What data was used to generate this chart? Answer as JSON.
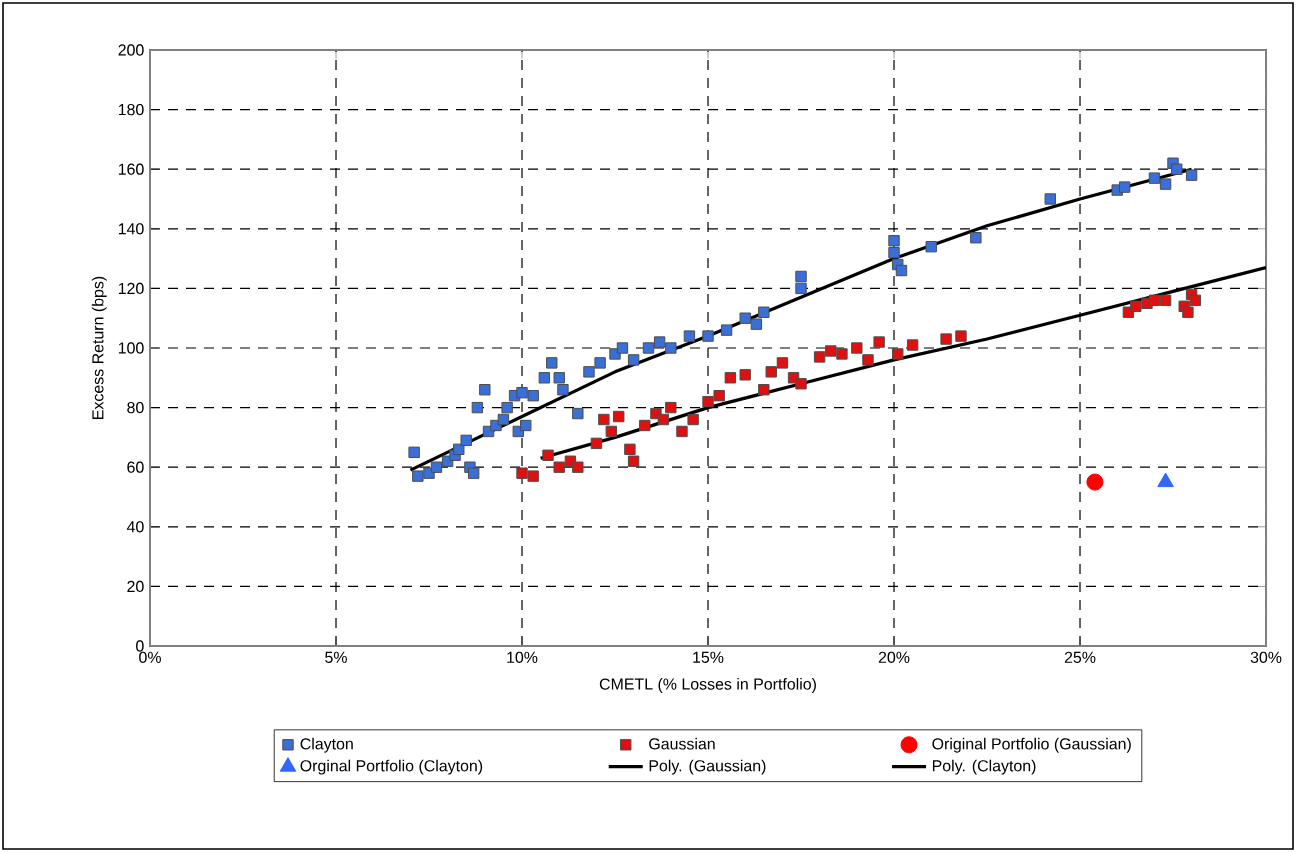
{
  "chart_data": {
    "type": "scatter",
    "xlabel": "CMETL (% Losses in Portfolio)",
    "ylabel": "Excess Return (bps)",
    "xlim": [
      0,
      30
    ],
    "ylim": [
      0,
      200
    ],
    "xticks": [
      {
        "value": 0,
        "label": "0%"
      },
      {
        "value": 5,
        "label": "5%"
      },
      {
        "value": 10,
        "label": "10%"
      },
      {
        "value": 15,
        "label": "15%"
      },
      {
        "value": 20,
        "label": "20%"
      },
      {
        "value": 25,
        "label": "25%"
      },
      {
        "value": 30,
        "label": "30%"
      }
    ],
    "yticks": [
      0,
      20,
      40,
      60,
      80,
      100,
      120,
      140,
      160,
      180,
      200
    ],
    "grid": true,
    "legend": "bottom",
    "series": [
      {
        "name": "Clayton",
        "marker": "square",
        "color": "#3a6fd8",
        "x": [
          7.1,
          7.2,
          7.5,
          7.7,
          8.0,
          8.2,
          8.3,
          8.5,
          8.6,
          8.7,
          8.8,
          9.0,
          9.1,
          9.3,
          9.5,
          9.6,
          9.8,
          9.9,
          10.0,
          10.1,
          10.3,
          10.6,
          10.8,
          11.0,
          11.1,
          11.5,
          11.8,
          12.1,
          12.5,
          12.7,
          13.0,
          13.4,
          13.7,
          14.0,
          14.5,
          15.0,
          15.5,
          16.0,
          16.3,
          16.5,
          17.5,
          17.5,
          20.0,
          20.0,
          20.1,
          20.2,
          21.0,
          22.2,
          24.2,
          26.0,
          26.2,
          27.0,
          27.3,
          27.5,
          27.6,
          28.0
        ],
        "values": [
          65,
          57,
          58,
          60,
          62,
          64,
          66,
          69,
          60,
          58,
          80,
          86,
          72,
          74,
          76,
          80,
          84,
          72,
          85,
          74,
          84,
          90,
          95,
          90,
          86,
          78,
          92,
          95,
          98,
          100,
          96,
          100,
          102,
          100,
          104,
          104,
          106,
          110,
          108,
          112,
          120,
          124,
          136,
          132,
          128,
          126,
          134,
          137,
          150,
          153,
          154,
          157,
          155,
          162,
          160,
          158
        ]
      },
      {
        "name": "Gaussian",
        "marker": "square",
        "color": "#e01010",
        "x": [
          10.0,
          10.3,
          10.7,
          11.0,
          11.3,
          11.5,
          12.0,
          12.2,
          12.4,
          12.6,
          12.9,
          13.0,
          13.3,
          13.6,
          13.8,
          14.0,
          14.3,
          14.6,
          15.0,
          15.3,
          15.6,
          16.0,
          16.5,
          16.7,
          17.0,
          17.3,
          17.5,
          18.0,
          18.3,
          18.6,
          19.0,
          19.3,
          19.6,
          20.1,
          20.5,
          21.4,
          21.8,
          26.3,
          26.5,
          26.8,
          27.0,
          27.3,
          27.8,
          28.0,
          28.1,
          27.9
        ],
        "values": [
          58,
          57,
          64,
          60,
          62,
          60,
          68,
          76,
          72,
          77,
          66,
          62,
          74,
          78,
          76,
          80,
          72,
          76,
          82,
          84,
          90,
          91,
          86,
          92,
          95,
          90,
          88,
          97,
          99,
          98,
          100,
          96,
          102,
          98,
          101,
          103,
          104,
          112,
          114,
          115,
          116,
          116,
          114,
          118,
          116,
          112
        ]
      },
      {
        "name": "Original Portfolio (Gaussian)",
        "marker": "circle",
        "color": "#ff0000",
        "x": [
          25.4
        ],
        "values": [
          55
        ]
      },
      {
        "name": "Orginal Portfolio (Clayton)",
        "marker": "triangle",
        "color": "#3366ff",
        "x": [
          27.3
        ],
        "values": [
          55
        ]
      },
      {
        "name": "Poly. (Gaussian)",
        "type": "line",
        "marker": "none",
        "color": "#000000",
        "x": [
          10.5,
          12.5,
          15,
          17.5,
          20,
          22.5,
          25,
          27.5,
          30
        ],
        "values": [
          63,
          70,
          80,
          88,
          96,
          103,
          111,
          119,
          127
        ]
      },
      {
        "name": "Poly. (Clayton)",
        "type": "line",
        "marker": "none",
        "color": "#000000",
        "x": [
          7,
          10,
          12.5,
          15,
          17.5,
          20,
          22.5,
          25,
          28
        ],
        "values": [
          59,
          77,
          92,
          104,
          117,
          130,
          141,
          150,
          160
        ]
      }
    ]
  }
}
